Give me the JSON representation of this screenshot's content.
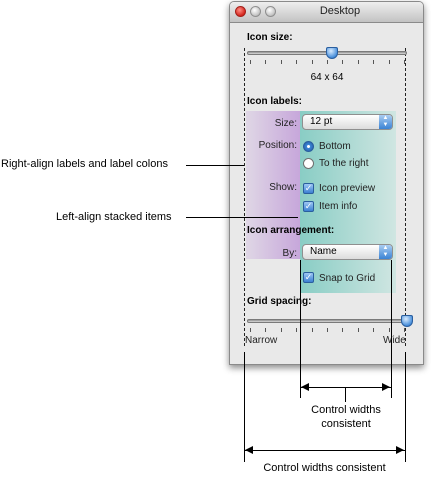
{
  "window": {
    "title": "Desktop",
    "icon_size": {
      "heading": "Icon size:",
      "value_text": "64 x 64",
      "slider_fraction": 0.53
    },
    "icon_labels": {
      "heading": "Icon labels:",
      "size_label": "Size:",
      "size_value": "12 pt",
      "position_label": "Position:",
      "position_options": [
        {
          "label": "Bottom",
          "selected": true
        },
        {
          "label": "To the right",
          "selected": false
        }
      ],
      "show_label": "Show:",
      "show_options": [
        {
          "label": "Icon preview",
          "checked": true
        },
        {
          "label": "Item info",
          "checked": true
        }
      ]
    },
    "icon_arrangement": {
      "heading": "Icon arrangement:",
      "by_label": "By:",
      "by_value": "Name",
      "snap_label": "Snap to Grid",
      "snap_checked": true
    },
    "grid_spacing": {
      "heading": "Grid spacing:",
      "min_label": "Narrow",
      "max_label": "Wide",
      "slider_fraction": 1.0
    }
  },
  "annotations": {
    "right_align": "Right-align labels and label colons",
    "left_align": "Left-align stacked items",
    "control_widths_inner_line1": "Control widths",
    "control_widths_inner_line2": "consistent",
    "control_widths_outer": "Control widths consistent"
  },
  "colors": {
    "label_band": "#b995d6",
    "control_band": "#7ccbbf",
    "accent_blue": "#3b80d2"
  }
}
